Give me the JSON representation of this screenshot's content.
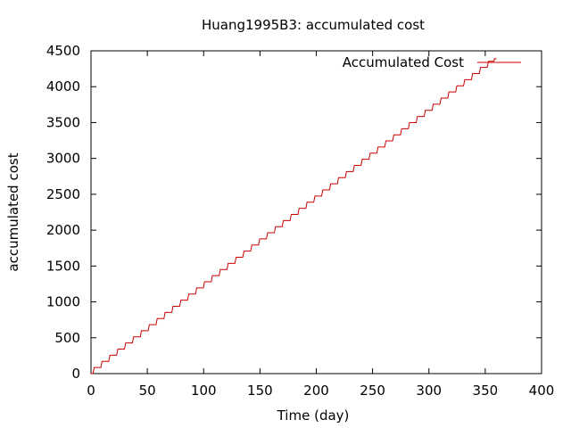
{
  "chart_data": {
    "type": "line",
    "title": "Huang1995B3: accumulated cost",
    "xlabel": "Time (day)",
    "ylabel": "accumulated cost",
    "xlim": [
      0,
      400
    ],
    "ylim": [
      0,
      4500
    ],
    "x_ticks": [
      0,
      50,
      100,
      150,
      200,
      250,
      300,
      350,
      400
    ],
    "y_ticks": [
      0,
      500,
      1000,
      1500,
      2000,
      2500,
      3000,
      3500,
      4000,
      4500
    ],
    "grid": false,
    "legend_position": "top-right",
    "series": [
      {
        "name": "Accumulated Cost",
        "color": "#cc0000",
        "style": "staircase",
        "x": [
          0,
          360
        ],
        "y": [
          0,
          4390
        ]
      }
    ]
  }
}
